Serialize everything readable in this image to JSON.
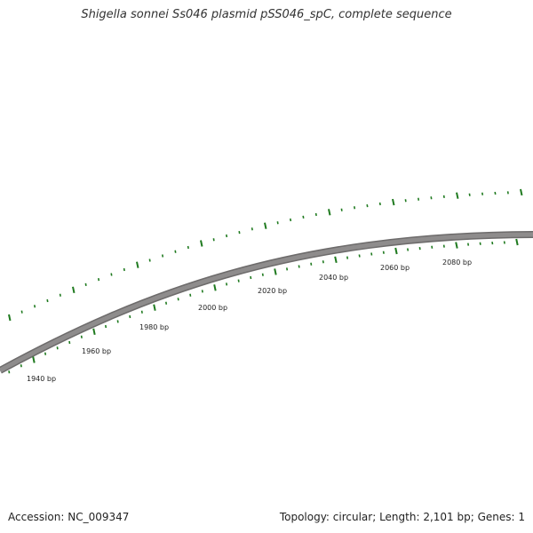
{
  "title": "Shigella sonnei Ss046 plasmid pSS046_spC, complete sequence",
  "footer": {
    "accession": "Accession: NC_009347",
    "summary": "Topology: circular; Length: 2,101 bp; Genes: 1"
  },
  "colors": {
    "backbone": "#8e8c8c",
    "backbone_edge": "#6d6b6b",
    "tick": "#1f7a1f",
    "text": "#222222"
  },
  "map": {
    "tick_labels": [
      "1940 bp",
      "1960 bp",
      "1980 bp",
      "2000 bp",
      "2020 bp",
      "2040 bp",
      "2060 bp",
      "2080 bp"
    ]
  }
}
